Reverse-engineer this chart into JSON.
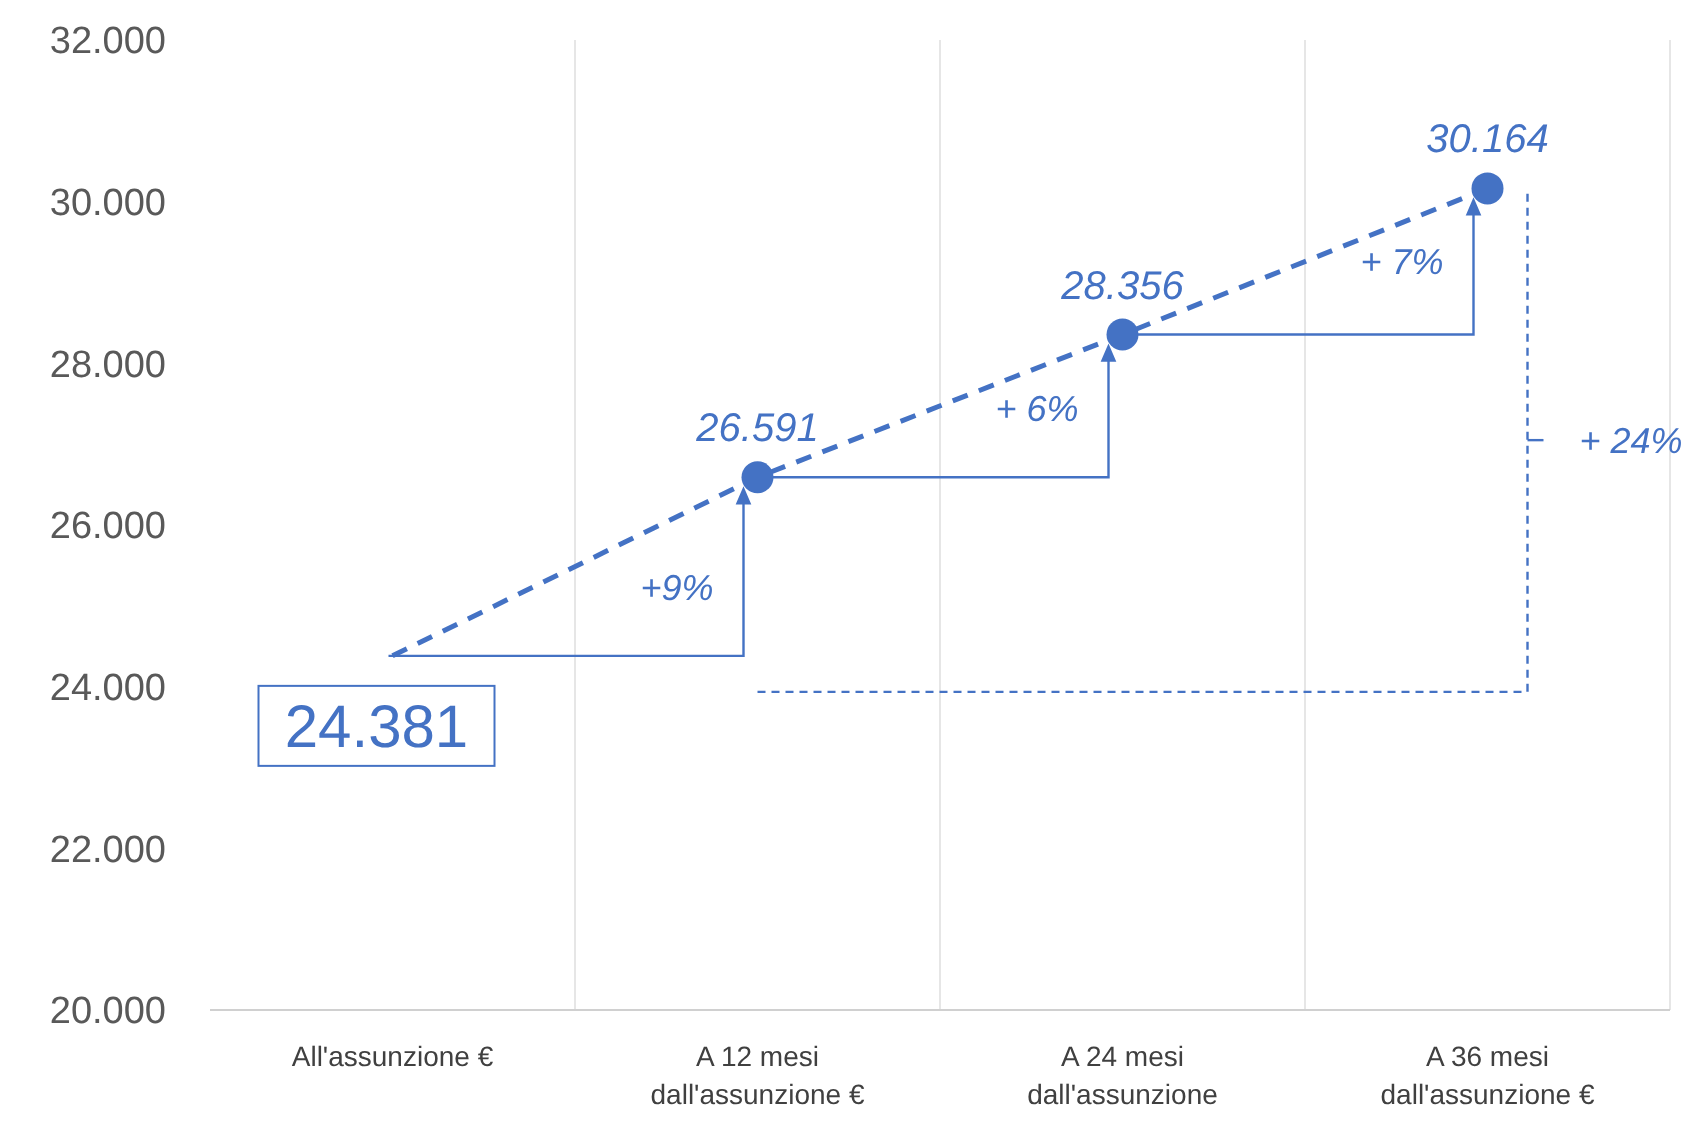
{
  "chart_data": {
    "type": "line",
    "categories": [
      "All'assunzione €",
      "A 12 mesi dall'assunzione €",
      "A 24 mesi dall'assunzione",
      "A 36 mesi dall'assunzione €"
    ],
    "values": [
      24381,
      26591,
      28356,
      30164
    ],
    "value_labels": [
      "24.381",
      "26.591",
      "28.356",
      "30.164"
    ],
    "color": "#4472c4",
    "line_style": "dashed",
    "marker": "circle",
    "ylim": [
      20000,
      32000
    ],
    "yticks": [
      {
        "value": 20000,
        "label": "20.000"
      },
      {
        "value": 22000,
        "label": "22.000"
      },
      {
        "value": 24000,
        "label": "24.000"
      },
      {
        "value": 26000,
        "label": "26.000"
      },
      {
        "value": 28000,
        "label": "28.000"
      },
      {
        "value": 30000,
        "label": "30.000"
      },
      {
        "value": 32000,
        "label": "32.000"
      }
    ],
    "grid": "x",
    "annotations": [
      "+9%",
      {
        "text": "+ 6%",
        "x": "A 24 mesi dall'assunzione",
        "y": 28356
      },
      {
        "text": "+ 7%",
        "x": "A 36 mesi dall'assunzione €",
        "y": 30164
      },
      "+ 24%"
    ]
  }
}
